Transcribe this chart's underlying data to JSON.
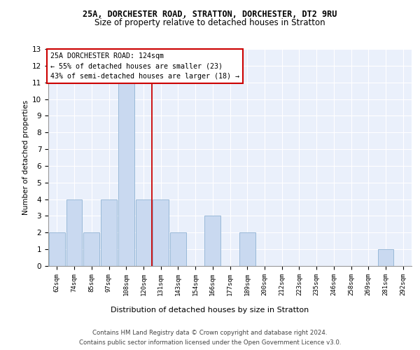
{
  "title1": "25A, DORCHESTER ROAD, STRATTON, DORCHESTER, DT2 9RU",
  "title2": "Size of property relative to detached houses in Stratton",
  "xlabel": "Distribution of detached houses by size in Stratton",
  "ylabel": "Number of detached properties",
  "categories": [
    "62sqm",
    "74sqm",
    "85sqm",
    "97sqm",
    "108sqm",
    "120sqm",
    "131sqm",
    "143sqm",
    "154sqm",
    "166sqm",
    "177sqm",
    "189sqm",
    "200sqm",
    "212sqm",
    "223sqm",
    "235sqm",
    "246sqm",
    "258sqm",
    "269sqm",
    "281sqm",
    "292sqm"
  ],
  "values": [
    2,
    4,
    2,
    4,
    11,
    4,
    4,
    2,
    0,
    3,
    0,
    2,
    0,
    0,
    0,
    0,
    0,
    0,
    0,
    1,
    0
  ],
  "bar_color": "#c9d9f0",
  "bar_edge_color": "#7fa8cc",
  "vline_x": 5.5,
  "vline_color": "#cc0000",
  "ylim": [
    0,
    13
  ],
  "annotation_text_line1": "25A DORCHESTER ROAD: 124sqm",
  "annotation_text_line2": "← 55% of detached houses are smaller (23)",
  "annotation_text_line3": "43% of semi-detached houses are larger (18) →",
  "footer1": "Contains HM Land Registry data © Crown copyright and database right 2024.",
  "footer2": "Contains public sector information licensed under the Open Government Licence v3.0.",
  "bg_color": "#ffffff",
  "plot_bg_color": "#eaf0fb",
  "grid_color": "#ffffff",
  "annotation_box_color": "#ffffff",
  "annotation_box_edge_color": "#cc0000",
  "title1_fontsize": 8.5,
  "title2_fontsize": 8.5,
  "ylabel_fontsize": 7.5,
  "xlabel_fontsize": 8.0,
  "tick_fontsize": 6.5,
  "footer_fontsize": 6.2
}
